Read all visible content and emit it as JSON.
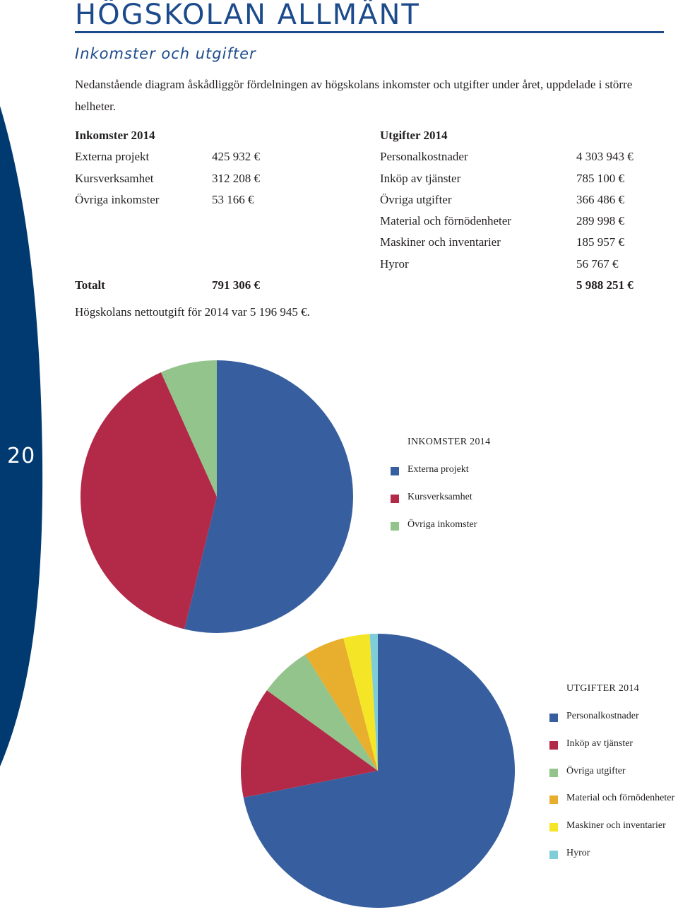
{
  "header": {
    "title": "HÖGSKOLAN ALLMÄNT",
    "subtitle": "Inkomster och utgifter",
    "page_number": "20"
  },
  "intro": "Nedanstående diagram åskådliggör fördelningen av högskolans inkomster och utgifter under året, uppdelade i större helheter.",
  "income": {
    "heading": "Inkomster 2014",
    "items": [
      {
        "label": "Externa projekt",
        "value": "425 932 €"
      },
      {
        "label": "Kursverksamhet",
        "value": "312 208 €"
      },
      {
        "label": "Övriga inkomster",
        "value": "53 166 €"
      }
    ],
    "total_label": "Totalt",
    "total_value": "791 306 €"
  },
  "expenses": {
    "heading": "Utgifter 2014",
    "items": [
      {
        "label": "Personalkostnader",
        "value": "4 303 943 €"
      },
      {
        "label": "Inköp av tjänster",
        "value": "785 100 €"
      },
      {
        "label": "Övriga utgifter",
        "value": "366 486 €"
      },
      {
        "label": "Material och förnödenheter",
        "value": "289 998 €"
      },
      {
        "label": "Maskiner och inventarier",
        "value": "185 957 €"
      },
      {
        "label": "Hyror",
        "value": "56 767 €"
      }
    ],
    "total_value": "5 988 251 €"
  },
  "net_note": "Högskolans nettoutgift för 2014 var 5 196 945 €.",
  "colors": {
    "side_band": "#003a70",
    "title": "#1c4b8c",
    "slice_1": "#375f9f",
    "slice_2": "#b22a47",
    "slice_3": "#92c48b",
    "slice_4": "#e8ae2d",
    "slice_5": "#f4e526",
    "slice_6": "#7fcdd8"
  },
  "chart_data": [
    {
      "type": "pie",
      "legend_title": "INKOMSTER 2014",
      "legend": "right",
      "categories": [
        "Externa projekt",
        "Kursverksamhet",
        "Övriga inkomster"
      ],
      "values": [
        425932,
        312208,
        53166
      ],
      "colors": [
        "#375f9f",
        "#b22a47",
        "#92c48b"
      ]
    },
    {
      "type": "pie",
      "legend_title": "UTGIFTER 2014",
      "legend": "right",
      "categories": [
        "Personalkostnader",
        "Inköp av tjänster",
        "Övriga utgifter",
        "Material och förnödenheter",
        "Maskiner och inventarier",
        "Hyror"
      ],
      "values": [
        4303943,
        785100,
        366486,
        289998,
        185957,
        56767
      ],
      "colors": [
        "#375f9f",
        "#b22a47",
        "#92c48b",
        "#e8ae2d",
        "#f4e526",
        "#7fcdd8"
      ]
    }
  ]
}
